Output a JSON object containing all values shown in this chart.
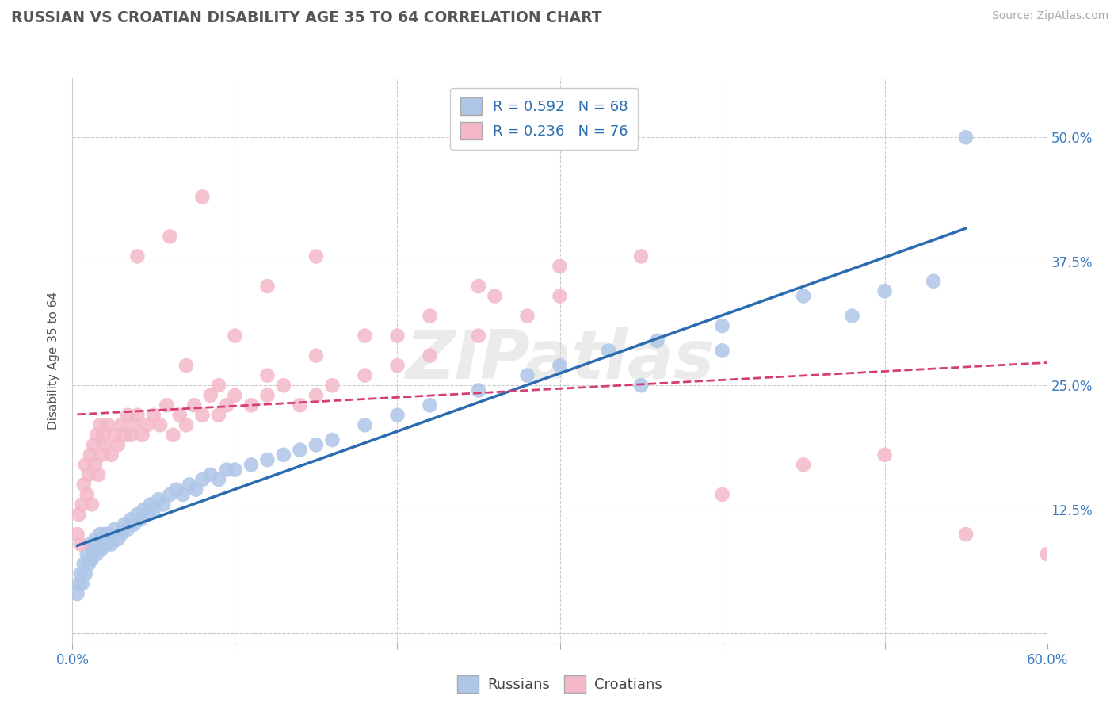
{
  "title": "RUSSIAN VS CROATIAN DISABILITY AGE 35 TO 64 CORRELATION CHART",
  "source_text": "Source: ZipAtlas.com",
  "ylabel": "Disability Age 35 to 64",
  "xlim": [
    0.0,
    0.6
  ],
  "ylim": [
    -0.01,
    0.56
  ],
  "xticks": [
    0.0,
    0.1,
    0.2,
    0.3,
    0.4,
    0.5,
    0.6
  ],
  "xticklabels": [
    "0.0%",
    "",
    "",
    "",
    "",
    "",
    "60.0%"
  ],
  "yticks": [
    0.0,
    0.125,
    0.25,
    0.375,
    0.5
  ],
  "yticklabels": [
    "",
    "12.5%",
    "25.0%",
    "37.5%",
    "50.0%"
  ],
  "russian_R": 0.592,
  "russian_N": 68,
  "croatian_R": 0.236,
  "croatian_N": 76,
  "russian_color": "#aec6e8",
  "croatian_color": "#f4b8c8",
  "russian_line_color": "#2b6cb0",
  "croatian_line_color": "#d63d72",
  "watermark": "ZIPatlas",
  "grid_color": "#cccccc",
  "russians_x": [
    0.003,
    0.004,
    0.005,
    0.006,
    0.007,
    0.008,
    0.009,
    0.01,
    0.011,
    0.012,
    0.013,
    0.014,
    0.015,
    0.016,
    0.017,
    0.018,
    0.019,
    0.02,
    0.021,
    0.022,
    0.024,
    0.026,
    0.028,
    0.03,
    0.032,
    0.034,
    0.036,
    0.038,
    0.04,
    0.042,
    0.044,
    0.046,
    0.048,
    0.05,
    0.053,
    0.056,
    0.06,
    0.064,
    0.068,
    0.072,
    0.076,
    0.08,
    0.085,
    0.09,
    0.095,
    0.1,
    0.11,
    0.12,
    0.13,
    0.14,
    0.15,
    0.16,
    0.18,
    0.2,
    0.22,
    0.25,
    0.28,
    0.3,
    0.33,
    0.36,
    0.4,
    0.45,
    0.5,
    0.53,
    0.55,
    0.4,
    0.48,
    0.35
  ],
  "russians_y": [
    0.04,
    0.05,
    0.06,
    0.05,
    0.07,
    0.06,
    0.08,
    0.07,
    0.09,
    0.075,
    0.085,
    0.095,
    0.08,
    0.09,
    0.1,
    0.085,
    0.095,
    0.1,
    0.09,
    0.1,
    0.09,
    0.105,
    0.095,
    0.1,
    0.11,
    0.105,
    0.115,
    0.11,
    0.12,
    0.115,
    0.125,
    0.12,
    0.13,
    0.125,
    0.135,
    0.13,
    0.14,
    0.145,
    0.14,
    0.15,
    0.145,
    0.155,
    0.16,
    0.155,
    0.165,
    0.165,
    0.17,
    0.175,
    0.18,
    0.185,
    0.19,
    0.195,
    0.21,
    0.22,
    0.23,
    0.245,
    0.26,
    0.27,
    0.285,
    0.295,
    0.31,
    0.34,
    0.345,
    0.355,
    0.5,
    0.285,
    0.32,
    0.25
  ],
  "croatians_x": [
    0.003,
    0.004,
    0.005,
    0.006,
    0.007,
    0.008,
    0.009,
    0.01,
    0.011,
    0.012,
    0.013,
    0.014,
    0.015,
    0.016,
    0.017,
    0.018,
    0.019,
    0.02,
    0.022,
    0.024,
    0.026,
    0.028,
    0.03,
    0.032,
    0.034,
    0.036,
    0.038,
    0.04,
    0.043,
    0.046,
    0.05,
    0.054,
    0.058,
    0.062,
    0.066,
    0.07,
    0.075,
    0.08,
    0.085,
    0.09,
    0.095,
    0.1,
    0.11,
    0.12,
    0.13,
    0.14,
    0.15,
    0.16,
    0.18,
    0.2,
    0.22,
    0.25,
    0.28,
    0.3,
    0.07,
    0.09,
    0.12,
    0.15,
    0.18,
    0.22,
    0.26,
    0.04,
    0.06,
    0.08,
    0.1,
    0.12,
    0.15,
    0.2,
    0.25,
    0.3,
    0.35,
    0.4,
    0.45,
    0.5,
    0.55,
    0.6
  ],
  "croatians_y": [
    0.1,
    0.12,
    0.09,
    0.13,
    0.15,
    0.17,
    0.14,
    0.16,
    0.18,
    0.13,
    0.19,
    0.17,
    0.2,
    0.16,
    0.21,
    0.18,
    0.2,
    0.19,
    0.21,
    0.18,
    0.2,
    0.19,
    0.21,
    0.2,
    0.22,
    0.2,
    0.21,
    0.22,
    0.2,
    0.21,
    0.22,
    0.21,
    0.23,
    0.2,
    0.22,
    0.21,
    0.23,
    0.22,
    0.24,
    0.22,
    0.23,
    0.24,
    0.23,
    0.24,
    0.25,
    0.23,
    0.24,
    0.25,
    0.26,
    0.27,
    0.28,
    0.3,
    0.32,
    0.34,
    0.27,
    0.25,
    0.26,
    0.28,
    0.3,
    0.32,
    0.34,
    0.38,
    0.4,
    0.44,
    0.3,
    0.35,
    0.38,
    0.3,
    0.35,
    0.37,
    0.38,
    0.14,
    0.17,
    0.18,
    0.1,
    0.08
  ]
}
